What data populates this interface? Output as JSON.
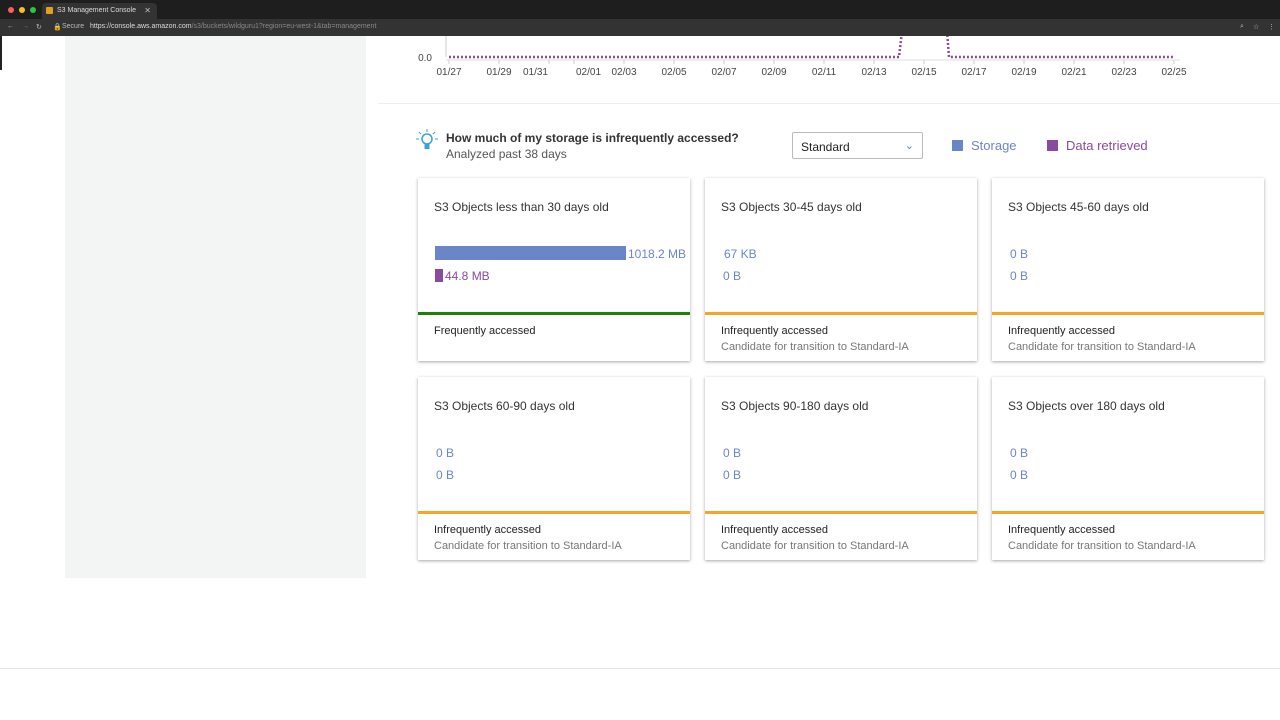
{
  "browser": {
    "tab_title": "S3 Management Console",
    "secure_label": "Secure",
    "url_host": "https://console.aws.amazon.com",
    "url_path": "/s3/buckets/wildguru1?region=eu-west-1&tab=management"
  },
  "chart_data": {
    "type": "line",
    "y_tick_labels": [
      "0.0"
    ],
    "x_tick_labels": [
      "01/27",
      "01/29",
      "01/31",
      "02/01",
      "02/03",
      "02/05",
      "02/07",
      "02/09",
      "02/11",
      "02/13",
      "02/15",
      "02/17",
      "02/19",
      "02/21",
      "02/23",
      "02/25"
    ],
    "series": [
      {
        "color": "#8a4a9e",
        "style": "dotted",
        "note_points": [
          [
            "01/27",
            0
          ],
          [
            "02/14",
            0
          ],
          [
            "02/16",
            0
          ],
          [
            "02/25",
            0
          ]
        ]
      }
    ]
  },
  "analysis": {
    "question": "How much of my storage is infrequently accessed?",
    "subtitle": "Analyzed past 38 days",
    "storage_class": "Standard",
    "legend": [
      {
        "label": "Storage",
        "color": "#6b86c6"
      },
      {
        "label": "Data retrieved",
        "color": "#8a4a9e"
      }
    ]
  },
  "cards": [
    {
      "title": "S3 Objects less than 30 days old",
      "storage": "1018.2 MB",
      "retrieved": "44.8 MB",
      "status": "Frequently accessed",
      "status_color": "#1d8102",
      "note": ""
    },
    {
      "title": "S3 Objects 30-45 days old",
      "storage": "67 KB",
      "retrieved": "0 B",
      "status": "Infrequently accessed",
      "status_color": "#f5a623",
      "note": "Candidate for transition to Standard-IA"
    },
    {
      "title": "S3 Objects 45-60 days old",
      "storage": "0 B",
      "retrieved": "0 B",
      "status": "Infrequently accessed",
      "status_color": "#f5a623",
      "note": "Candidate for transition to Standard-IA"
    },
    {
      "title": "S3 Objects 60-90 days old",
      "storage": "0 B",
      "retrieved": "0 B",
      "status": "Infrequently accessed",
      "status_color": "#f5a623",
      "note": "Candidate for transition to Standard-IA"
    },
    {
      "title": "S3 Objects 90-180 days old",
      "storage": "0 B",
      "retrieved": "0 B",
      "status": "Infrequently accessed",
      "status_color": "#f5a623",
      "note": "Candidate for transition to Standard-IA"
    },
    {
      "title": "S3 Objects over 180 days old",
      "storage": "0 B",
      "retrieved": "0 B",
      "status": "Infrequently accessed",
      "status_color": "#f5a623",
      "note": "Candidate for transition to Standard-IA"
    }
  ]
}
